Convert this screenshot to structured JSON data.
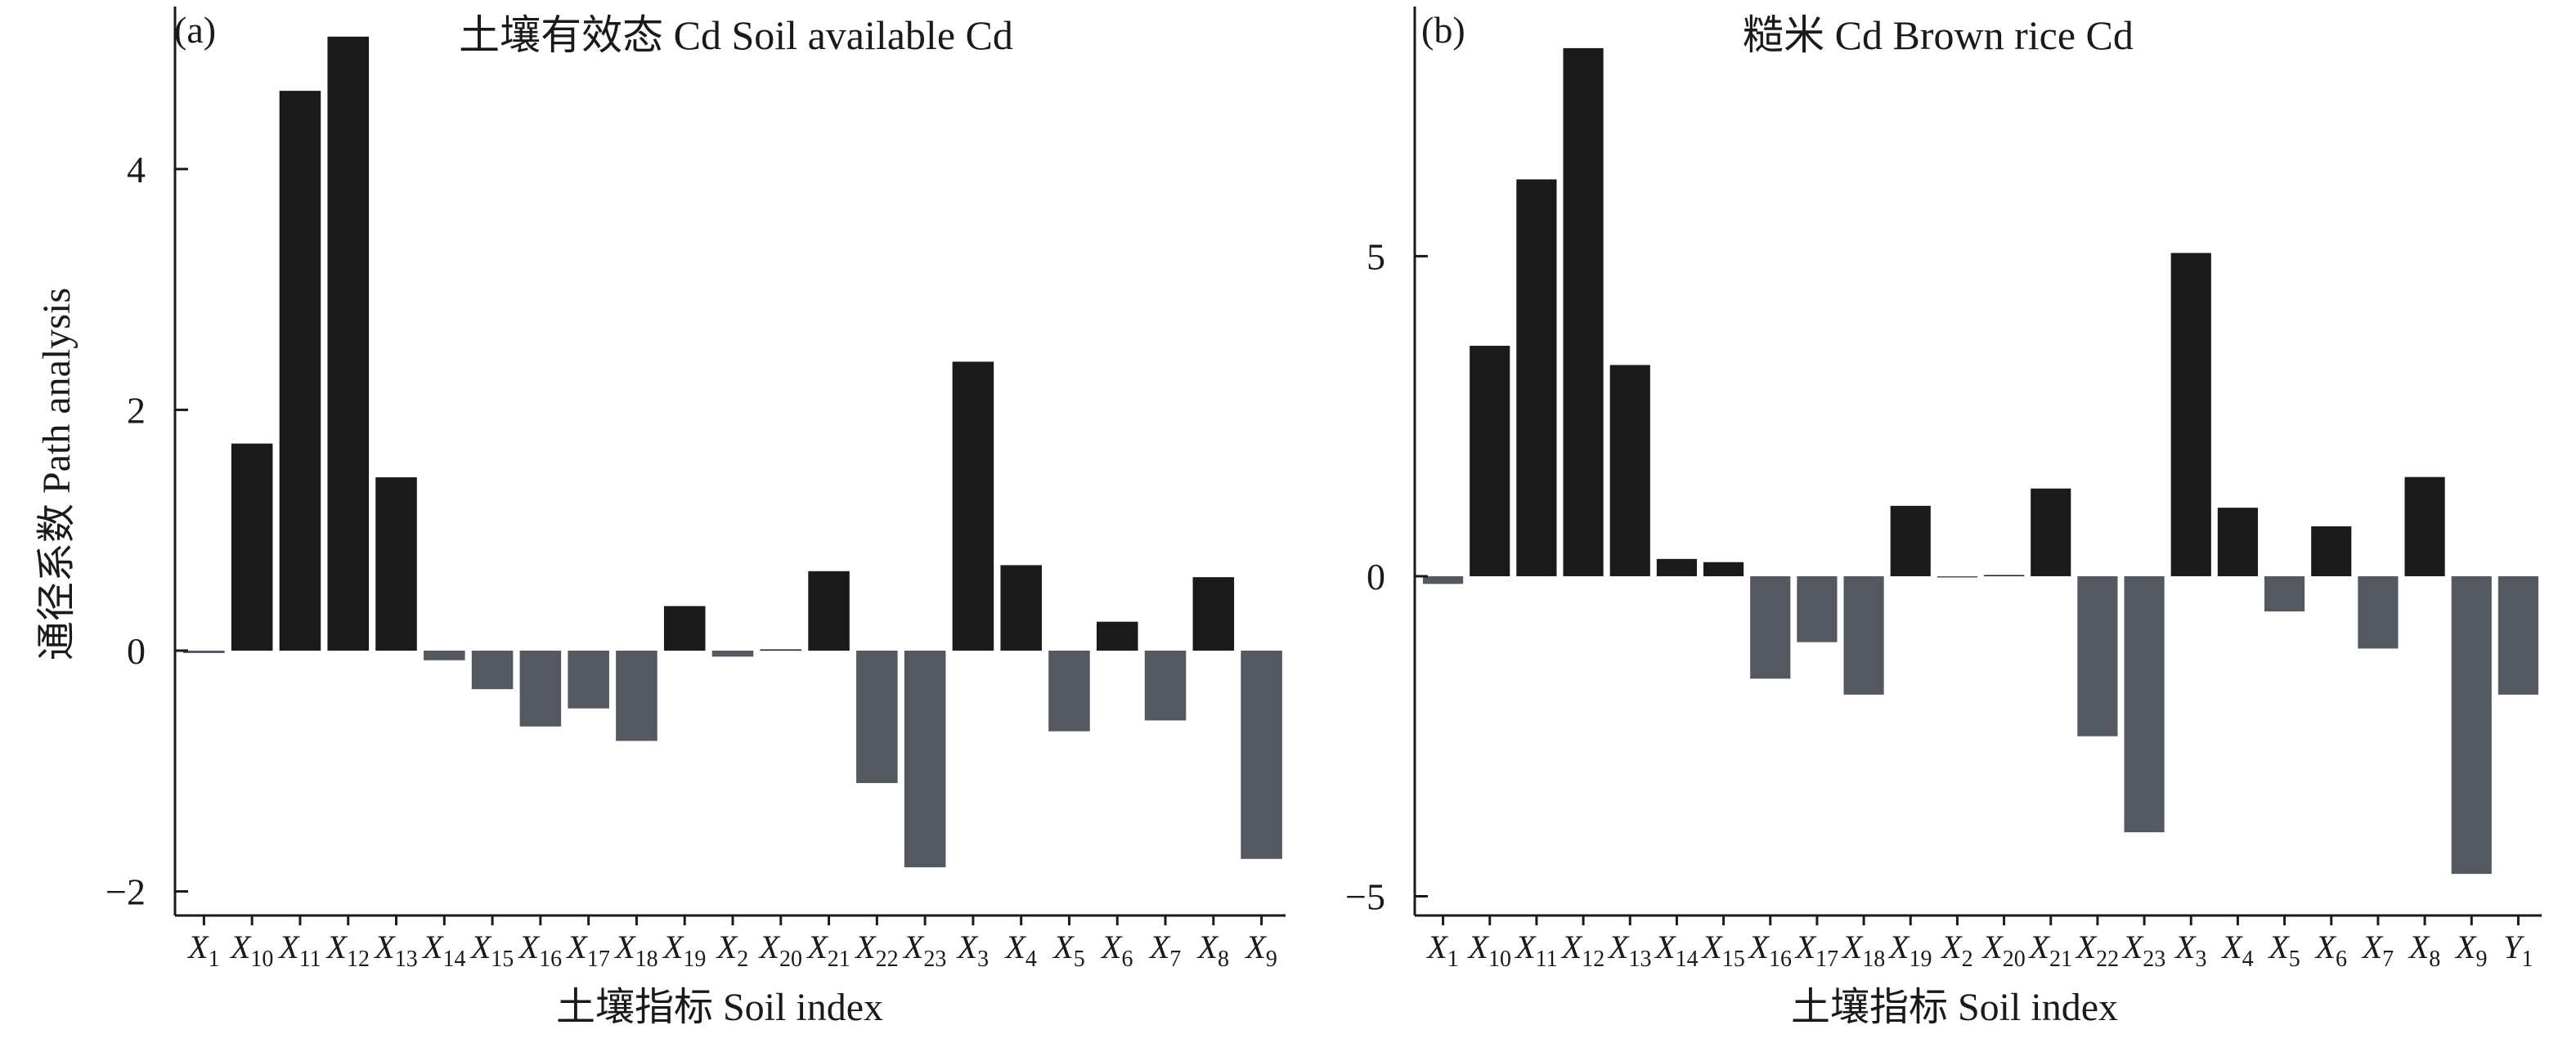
{
  "figure": {
    "ylabel": "通径系数 Path analysis"
  },
  "chart_data": [
    {
      "type": "bar",
      "panel_label": "(a)",
      "title": "土壤有效态 Cd Soil available Cd",
      "xlabel": "土壤指标 Soil index",
      "ylabel": "通径系数 Path analysis",
      "ylim": [
        -2.2,
        5.35
      ],
      "yticks": [
        -2,
        0,
        2,
        4
      ],
      "grid": false,
      "colors": {
        "positive": "#1a1a1a",
        "negative": "#545861"
      },
      "categories": [
        "X1",
        "X10",
        "X11",
        "X12",
        "X13",
        "X14",
        "X15",
        "X16",
        "X17",
        "X18",
        "X19",
        "X2",
        "X20",
        "X21",
        "X22",
        "X23",
        "X3",
        "X4",
        "X5",
        "X6",
        "X7",
        "X8",
        "X9"
      ],
      "category_labels": [
        [
          "X",
          "1"
        ],
        [
          "X",
          "10"
        ],
        [
          "X",
          "11"
        ],
        [
          "X",
          "12"
        ],
        [
          "X",
          "13"
        ],
        [
          "X",
          "14"
        ],
        [
          "X",
          "15"
        ],
        [
          "X",
          "16"
        ],
        [
          "X",
          "17"
        ],
        [
          "X",
          "18"
        ],
        [
          "X",
          "19"
        ],
        [
          "X",
          "2"
        ],
        [
          "X",
          "20"
        ],
        [
          "X",
          "21"
        ],
        [
          "X",
          "22"
        ],
        [
          "X",
          "23"
        ],
        [
          "X",
          "3"
        ],
        [
          "X",
          "4"
        ],
        [
          "X",
          "5"
        ],
        [
          "X",
          "6"
        ],
        [
          "X",
          "7"
        ],
        [
          "X",
          "8"
        ],
        [
          "X",
          "9"
        ]
      ],
      "values": [
        -0.02,
        1.72,
        4.65,
        5.1,
        1.44,
        -0.08,
        -0.32,
        -0.63,
        -0.48,
        -0.75,
        0.37,
        -0.05,
        0.0,
        0.66,
        -1.1,
        -1.8,
        2.4,
        0.71,
        -0.67,
        0.24,
        -0.58,
        0.61,
        -1.73
      ]
    },
    {
      "type": "bar",
      "panel_label": "(b)",
      "title": "糙米 Cd Brown rice Cd",
      "xlabel": "土壤指标 Soil index",
      "ylim": [
        -5.3,
        8.9
      ],
      "yticks": [
        -5,
        0,
        5
      ],
      "grid": false,
      "colors": {
        "positive": "#1a1a1a",
        "negative": "#545861"
      },
      "categories": [
        "X1",
        "X10",
        "X11",
        "X12",
        "X13",
        "X14",
        "X15",
        "X16",
        "X17",
        "X18",
        "X19",
        "X2",
        "X20",
        "X21",
        "X22",
        "X23",
        "X3",
        "X4",
        "X5",
        "X6",
        "X7",
        "X8",
        "X9",
        "Y1"
      ],
      "category_labels": [
        [
          "X",
          "1"
        ],
        [
          "X",
          "10"
        ],
        [
          "X",
          "11"
        ],
        [
          "X",
          "12"
        ],
        [
          "X",
          "13"
        ],
        [
          "X",
          "14"
        ],
        [
          "X",
          "15"
        ],
        [
          "X",
          "16"
        ],
        [
          "X",
          "17"
        ],
        [
          "X",
          "18"
        ],
        [
          "X",
          "19"
        ],
        [
          "X",
          "2"
        ],
        [
          "X",
          "20"
        ],
        [
          "X",
          "21"
        ],
        [
          "X",
          "22"
        ],
        [
          "X",
          "23"
        ],
        [
          "X",
          "3"
        ],
        [
          "X",
          "4"
        ],
        [
          "X",
          "5"
        ],
        [
          "X",
          "6"
        ],
        [
          "X",
          "7"
        ],
        [
          "X",
          "8"
        ],
        [
          "X",
          "9"
        ],
        [
          "Y",
          "1"
        ]
      ],
      "values": [
        -0.12,
        3.6,
        6.2,
        8.25,
        3.3,
        0.27,
        0.22,
        -1.6,
        -1.03,
        -1.85,
        1.1,
        -0.02,
        0.0,
        1.37,
        -2.5,
        -4.0,
        5.05,
        1.07,
        -0.55,
        0.78,
        -1.13,
        1.55,
        -4.65,
        -1.85
      ]
    }
  ]
}
